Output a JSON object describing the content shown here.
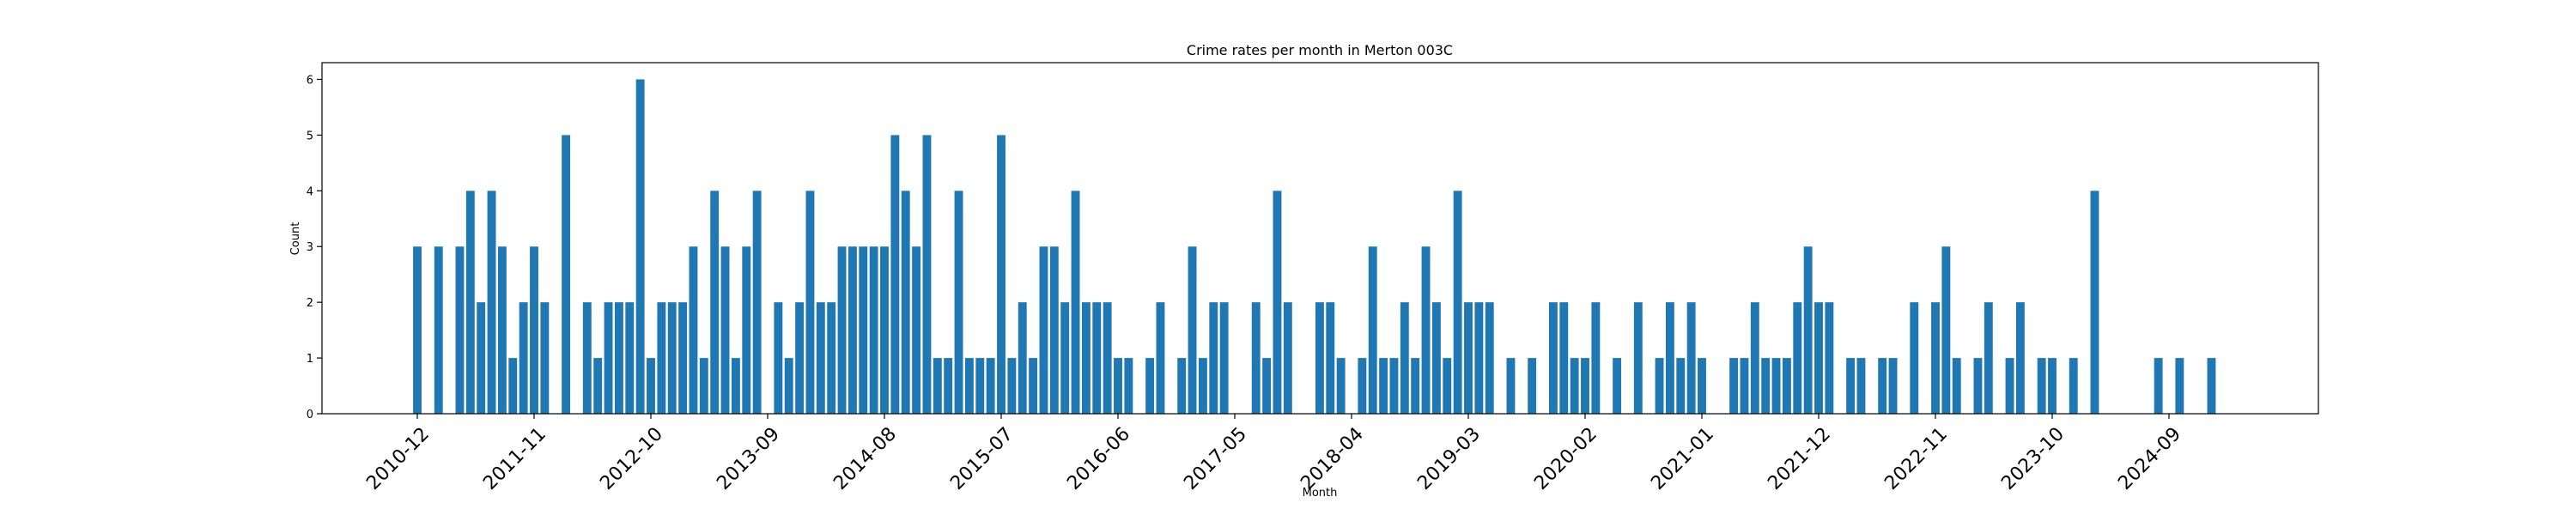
{
  "chart_data": {
    "type": "bar",
    "title": "Crime rates per month in Merton 003C",
    "xlabel": "Month",
    "ylabel": "Count",
    "ylim": [
      0,
      6.3
    ],
    "yticks": [
      0,
      1,
      2,
      3,
      4,
      5,
      6
    ],
    "xticks": [
      "2010-12",
      "2011-11",
      "2012-10",
      "2013-09",
      "2014-08",
      "2015-07",
      "2016-06",
      "2017-05",
      "2018-04",
      "2019-03",
      "2020-02",
      "2021-01",
      "2021-12",
      "2022-11",
      "2023-10",
      "2024-09"
    ],
    "bar_color": "#1f77b4",
    "grid": false,
    "series": [
      {
        "x": [
          "2010-12",
          "2011-02",
          "2011-04",
          "2011-05",
          "2011-06",
          "2011-07",
          "2011-08",
          "2011-09",
          "2011-10",
          "2011-11",
          "2011-12",
          "2012-02",
          "2012-04",
          "2012-05",
          "2012-06",
          "2012-07",
          "2012-08",
          "2012-09",
          "2012-10",
          "2012-11",
          "2012-12",
          "2013-01",
          "2013-02",
          "2013-03",
          "2013-04",
          "2013-05",
          "2013-06",
          "2013-07",
          "2013-08",
          "2013-10",
          "2013-11",
          "2013-12",
          "2014-01",
          "2014-02",
          "2014-03",
          "2014-04",
          "2014-05",
          "2014-06",
          "2014-07",
          "2014-08",
          "2014-09",
          "2014-10",
          "2014-11",
          "2014-12",
          "2015-01",
          "2015-02",
          "2015-03",
          "2015-04",
          "2015-05",
          "2015-06",
          "2015-07",
          "2015-08",
          "2015-09",
          "2015-10",
          "2015-11",
          "2015-12",
          "2016-01",
          "2016-02",
          "2016-03",
          "2016-04",
          "2016-05",
          "2016-06",
          "2016-07",
          "2016-09",
          "2016-10",
          "2016-12",
          "2017-01",
          "2017-02",
          "2017-03",
          "2017-04",
          "2017-07",
          "2017-08",
          "2017-09",
          "2017-10",
          "2018-01",
          "2018-02",
          "2018-03",
          "2018-05",
          "2018-06",
          "2018-07",
          "2018-08",
          "2018-09",
          "2018-10",
          "2018-11",
          "2018-12",
          "2019-01",
          "2019-02",
          "2019-03",
          "2019-04",
          "2019-05",
          "2019-07",
          "2019-09",
          "2019-11",
          "2019-12",
          "2020-01",
          "2020-02",
          "2020-03",
          "2020-05",
          "2020-07",
          "2020-09",
          "2020-10",
          "2020-11",
          "2020-12",
          "2021-01",
          "2021-04",
          "2021-05",
          "2021-06",
          "2021-07",
          "2021-08",
          "2021-09",
          "2021-10",
          "2021-11",
          "2021-12",
          "2022-01",
          "2022-03",
          "2022-04",
          "2022-06",
          "2022-07",
          "2022-09",
          "2022-11",
          "2022-12",
          "2023-01",
          "2023-03",
          "2023-04",
          "2023-06",
          "2023-07",
          "2023-09",
          "2023-10",
          "2023-12",
          "2024-02",
          "2024-08",
          "2024-10",
          "2025-01"
        ],
        "values": [
          3,
          3,
          3,
          4,
          2,
          4,
          3,
          1,
          2,
          3,
          2,
          5,
          2,
          1,
          2,
          2,
          2,
          6,
          1,
          2,
          2,
          2,
          3,
          1,
          4,
          3,
          1,
          3,
          4,
          2,
          1,
          2,
          4,
          2,
          2,
          3,
          3,
          3,
          3,
          3,
          5,
          4,
          3,
          5,
          1,
          1,
          4,
          1,
          1,
          1,
          5,
          1,
          2,
          1,
          3,
          3,
          2,
          4,
          2,
          2,
          2,
          1,
          1,
          1,
          2,
          1,
          3,
          1,
          2,
          2,
          2,
          1,
          4,
          2,
          2,
          2,
          1,
          1,
          3,
          1,
          1,
          2,
          1,
          3,
          2,
          1,
          4,
          2,
          2,
          2,
          1,
          1,
          2,
          2,
          1,
          1,
          2,
          1,
          2,
          1,
          2,
          1,
          2,
          1,
          1,
          1,
          2,
          1,
          1,
          1,
          2,
          3,
          2,
          2,
          1,
          1,
          1,
          1,
          2,
          2,
          3,
          1,
          1,
          2,
          1,
          2,
          1,
          1,
          1,
          4,
          1,
          1,
          1
        ]
      }
    ]
  }
}
